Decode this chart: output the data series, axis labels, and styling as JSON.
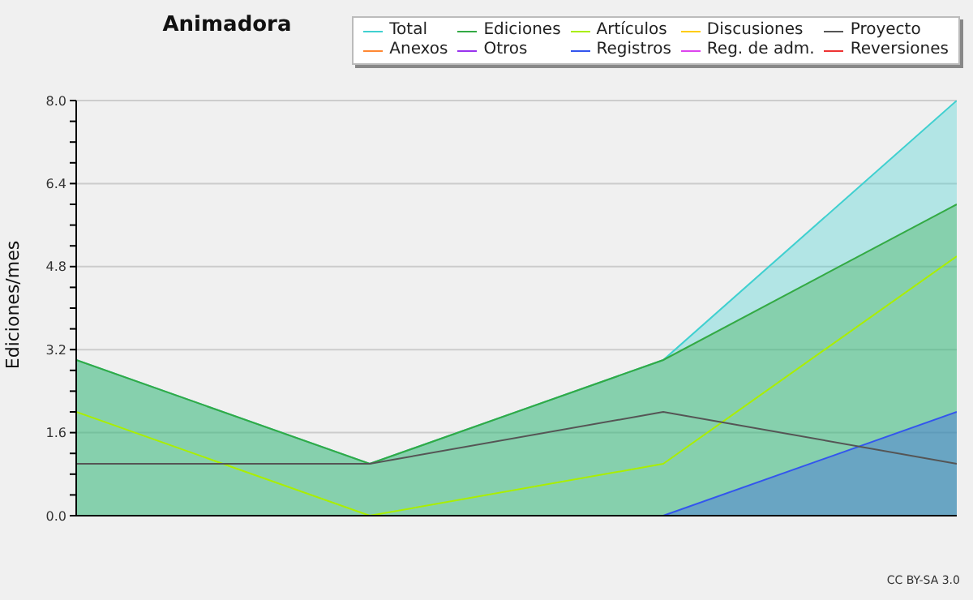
{
  "chart_data": {
    "type": "line",
    "title": "Animadora",
    "ylabel": "Ediciones/mes",
    "categories": [
      null,
      null,
      null,
      null
    ],
    "series": [
      {
        "name": "Total",
        "type": "area",
        "color": "#40d0d0",
        "values": [
          3,
          1,
          3,
          8
        ]
      },
      {
        "name": "Ediciones",
        "type": "area",
        "color": "#33aa44",
        "values": [
          3,
          1,
          3,
          6
        ]
      },
      {
        "name": "Artículos",
        "color": "#aaee00",
        "values": [
          2,
          0,
          1,
          5
        ]
      },
      {
        "name": "Discusiones",
        "color": "#ffcc00",
        "values": [
          null,
          null,
          null,
          null
        ]
      },
      {
        "name": "Proyecto",
        "color": "#555555",
        "values": [
          1,
          1,
          2,
          1
        ]
      },
      {
        "name": "Anexos",
        "color": "#ff8833",
        "values": [
          null,
          null,
          null,
          null
        ]
      },
      {
        "name": "Otros",
        "color": "#9933ee",
        "values": [
          null,
          null,
          null,
          null
        ]
      },
      {
        "name": "Registros",
        "type": "area",
        "color": "#3355ee",
        "values": [
          null,
          null,
          0,
          2
        ]
      },
      {
        "name": "Reg. de adm.",
        "color": "#dd44ee",
        "values": [
          null,
          null,
          null,
          null
        ]
      },
      {
        "name": "Reversiones",
        "color": "#ee3333",
        "values": [
          null,
          null,
          null,
          null
        ]
      }
    ],
    "ylim": [
      0,
      8
    ],
    "yticks": [
      {
        "value": 0,
        "label": "0.0"
      },
      {
        "value": 0.4,
        "label": null
      },
      {
        "value": 0.8,
        "label": null
      },
      {
        "value": 1.2,
        "label": null
      },
      {
        "value": 1.6,
        "label": "1.6"
      },
      {
        "value": 2,
        "label": null
      },
      {
        "value": 2.4,
        "label": null
      },
      {
        "value": 2.8,
        "label": null
      },
      {
        "value": 3.2,
        "label": "3.2"
      },
      {
        "value": 3.6,
        "label": null
      },
      {
        "value": 4,
        "label": null
      },
      {
        "value": 4.4,
        "label": null
      },
      {
        "value": 4.8,
        "label": "4.8"
      },
      {
        "value": 5.2,
        "label": null
      },
      {
        "value": 5.6,
        "label": null
      },
      {
        "value": 6,
        "label": null
      },
      {
        "value": 6.4,
        "label": "6.4"
      },
      {
        "value": 6.8,
        "label": null
      },
      {
        "value": 7.2,
        "label": null
      },
      {
        "value": 7.6,
        "label": null
      },
      {
        "value": 8,
        "label": "8.0"
      }
    ],
    "grid": "y",
    "legend": "top right",
    "marker": "none",
    "line_style": "solid",
    "annotations": [
      "CC BY-SA 3.0"
    ]
  }
}
